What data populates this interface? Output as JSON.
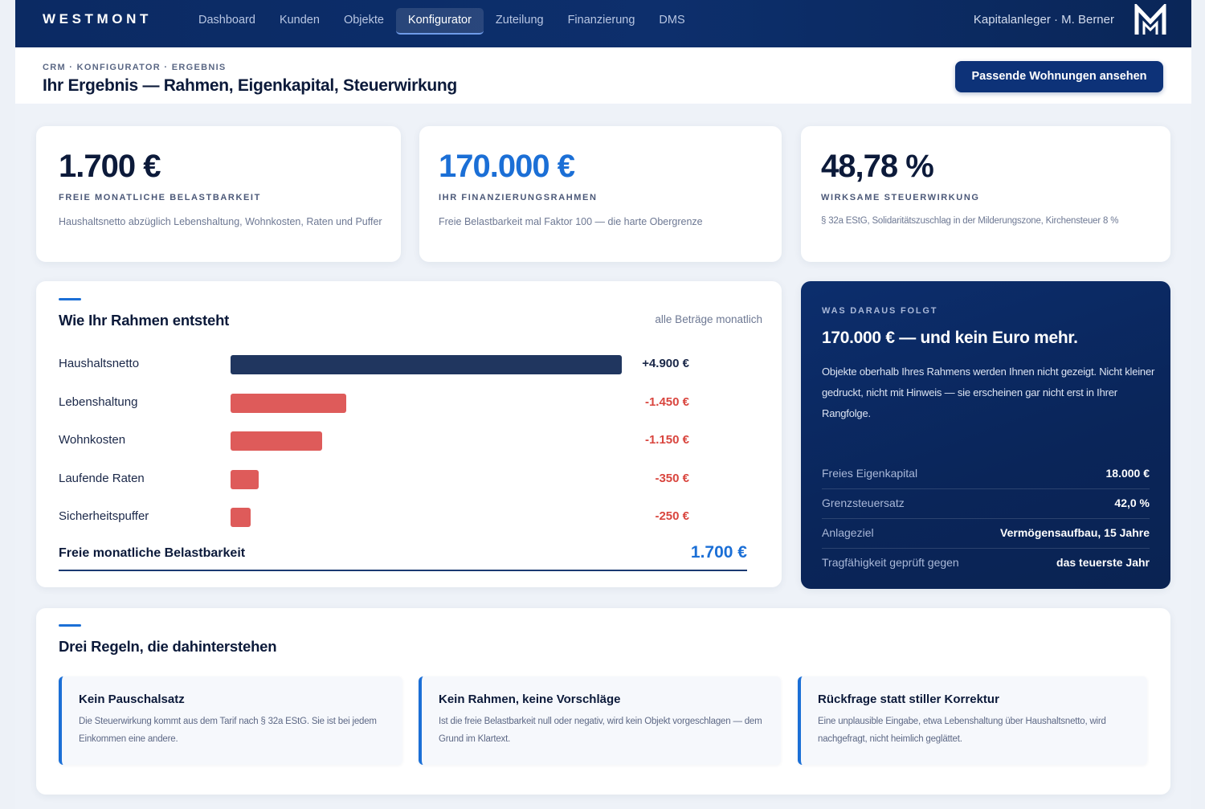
{
  "nav": {
    "brand": "WESTMONT",
    "links": [
      "Dashboard",
      "Kunden",
      "Objekte",
      "Konfigurator",
      "Zuteilung",
      "Finanzierung",
      "DMS"
    ],
    "active": "Konfigurator",
    "user": "Kapitalanleger · M. Berner"
  },
  "header": {
    "breadcrumb": "CRM · KONFIGURATOR · ERGEBNIS",
    "title": "Ihr Ergebnis — Rahmen, Eigenkapital, Steuerwirkung",
    "cta": "Passende Wohnungen ansehen"
  },
  "kpis": [
    {
      "value": "1.700 €",
      "label": "FREIE MONATLICHE BELASTBARKEIT",
      "desc": "Haushaltsnetto abzüglich Lebenshaltung, Wohnkosten, Raten und Puffer"
    },
    {
      "value": "170.000 €",
      "label": "IHR FINANZIERUNGSRAHMEN",
      "desc": "Freie Belastbarkeit mal Faktor 100 — die harte Obergrenze"
    },
    {
      "value": "48,78 %",
      "label": "WIRKSAME STEUERWIRKUNG",
      "desc": "§ 32a EStG, Solidaritätszuschlag in der Milderungszone, Kirchensteuer 8 %"
    }
  ],
  "breakdown": {
    "title": "Wie Ihr Rahmen entsteht",
    "note": "alle Beträge monatlich",
    "rows": [
      {
        "label": "Haushaltsnetto",
        "value": "+4.900 €",
        "amount": 4900,
        "type": "pos"
      },
      {
        "label": "Lebenshaltung",
        "value": "-1.450 €",
        "amount": 1450,
        "type": "neg"
      },
      {
        "label": "Wohnkosten",
        "value": "-1.150 €",
        "amount": 1150,
        "type": "neg"
      },
      {
        "label": "Laufende Raten",
        "value": "-350 €",
        "amount": 350,
        "type": "neg"
      },
      {
        "label": "Sicherheitspuffer",
        "value": "-250 €",
        "amount": 250,
        "type": "neg"
      }
    ],
    "total_label": "Freie monatliche Belastbarkeit",
    "total_value": "1.700 €"
  },
  "summary": {
    "eyebrow": "WAS DARAUS FOLGT",
    "title": "170.000 € — und kein Euro mehr.",
    "body": "Objekte oberhalb Ihres Rahmens werden Ihnen nicht gezeigt. Nicht kleiner gedruckt, nicht mit Hinweis — sie erscheinen gar nicht erst in Ihrer Rangfolge.",
    "rows": [
      {
        "key": "Freies Eigenkapital",
        "value": "18.000 €"
      },
      {
        "key": "Grenzsteuersatz",
        "value": "42,0 %"
      },
      {
        "key": "Anlageziel",
        "value": "Vermögensaufbau, 15 Jahre"
      },
      {
        "key": "Tragfähigkeit geprüft gegen",
        "value": "das teuerste Jahr"
      }
    ]
  },
  "rules": {
    "title": "Drei Regeln, die dahinterstehen",
    "items": [
      {
        "title": "Kein Pauschalsatz",
        "text": "Die Steuerwirkung kommt aus dem Tarif nach § 32a EStG. Sie ist bei jedem Einkommen eine andere."
      },
      {
        "title": "Kein Rahmen, keine Vorschläge",
        "text": "Ist die freie Belastbarkeit null oder negativ, wird kein Objekt vorgeschlagen — dem Grund im Klartext."
      },
      {
        "title": "Rückfrage statt stiller Korrektur",
        "text": "Eine unplausible Eingabe, etwa Lebenshaltung über Haushaltsnetto, wird nachgefragt, nicht heimlich geglättet."
      }
    ]
  },
  "colors": {
    "navy": "#0d2f6c",
    "accent": "#1b6fd6",
    "negative": "#de5b5a",
    "positive_bar": "#20365f"
  }
}
